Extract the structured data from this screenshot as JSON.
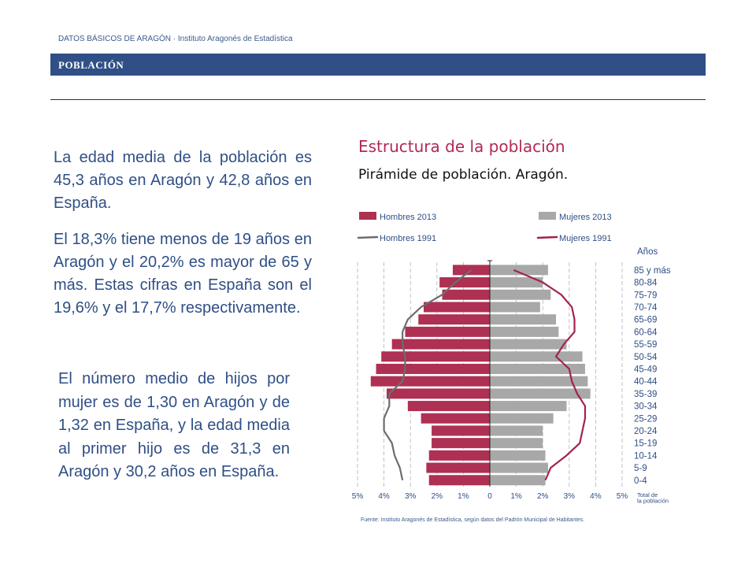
{
  "header": {
    "topline": "DATOS BÁSICOS DE ARAGÓN · Instituto Aragonés de Estadística",
    "section": "POBLACIÓN"
  },
  "text": {
    "p1": "La edad media de la población es 45,3 años en Aragón y 42,8 años en España.",
    "p2": "El 18,3% tiene menos de 19 años en Aragón y el 20,2% es mayor de 65 y más. Estas cifras en España son el 19,6% y el 17,7% respectivamente.",
    "p3": "El número medio de hijos por mujer es de 1,30 en Aragón y de 1,32 en España, y la edad media al primer hijo es de 31,3 en Aragón y 30,2 años en España."
  },
  "chart": {
    "title": "Estructura de la población",
    "subtitle": "Pirámide de población. Aragón.",
    "source": "Fuente: Instituto Aragonés de Estadística, según datos del Padrón Municipal de Habitantes."
  },
  "colors": {
    "hombres2013": "#ae3053",
    "mujeres2013": "#a8a8a8",
    "hombres1991": "#6d6d6d",
    "mujeres1991": "#a4224c",
    "text": "#2f4f86",
    "banner": "#2f4f86"
  },
  "chart_data": {
    "type": "bar",
    "subtype": "population-pyramid",
    "title": "Estructura de la población",
    "subtitle": "Pirámide de población. Aragón.",
    "y_axis_title": "Años",
    "x_axis_title": "Total de la población",
    "xlim": [
      -5,
      5
    ],
    "x_ticks": [
      "5%",
      "4%",
      "3%",
      "2%",
      "1%",
      "0",
      "1%",
      "2%",
      "3%",
      "4%",
      "5%"
    ],
    "grid": "vertical dashed",
    "legend_position": "top",
    "categories": [
      "0-4",
      "5-9",
      "10-14",
      "15-19",
      "20-24",
      "25-29",
      "30-34",
      "35-39",
      "40-44",
      "45-49",
      "50-54",
      "55-59",
      "60-64",
      "65-69",
      "70-74",
      "75-79",
      "80-84",
      "85 y más"
    ],
    "series": [
      {
        "name": "Hombres 2013",
        "kind": "bar",
        "side": "left",
        "values": [
          2.3,
          2.4,
          2.3,
          2.2,
          2.2,
          2.6,
          3.1,
          3.9,
          4.5,
          4.3,
          4.1,
          3.7,
          3.2,
          2.7,
          2.5,
          1.8,
          1.9,
          1.4
        ]
      },
      {
        "name": "Mujeres 2013",
        "kind": "bar",
        "side": "right",
        "values": [
          2.1,
          2.2,
          2.1,
          2.0,
          2.0,
          2.4,
          2.9,
          3.8,
          3.7,
          3.6,
          3.5,
          2.9,
          2.6,
          2.5,
          1.9,
          2.3,
          2.0,
          2.2
        ]
      },
      {
        "name": "Hombres 1991",
        "kind": "line",
        "side": "left",
        "values": [
          3.3,
          3.4,
          3.6,
          3.7,
          4.0,
          4.0,
          3.8,
          3.8,
          3.3,
          3.2,
          3.2,
          3.3,
          3.3,
          3.1,
          2.6,
          1.8,
          1.3,
          0.7
        ]
      },
      {
        "name": "Mujeres 1991",
        "kind": "line",
        "side": "right",
        "values": [
          2.1,
          2.3,
          2.9,
          3.4,
          3.5,
          3.6,
          3.6,
          3.3,
          3.1,
          3.0,
          2.5,
          2.8,
          3.2,
          3.2,
          3.1,
          2.7,
          2.0,
          0.9
        ]
      }
    ]
  }
}
